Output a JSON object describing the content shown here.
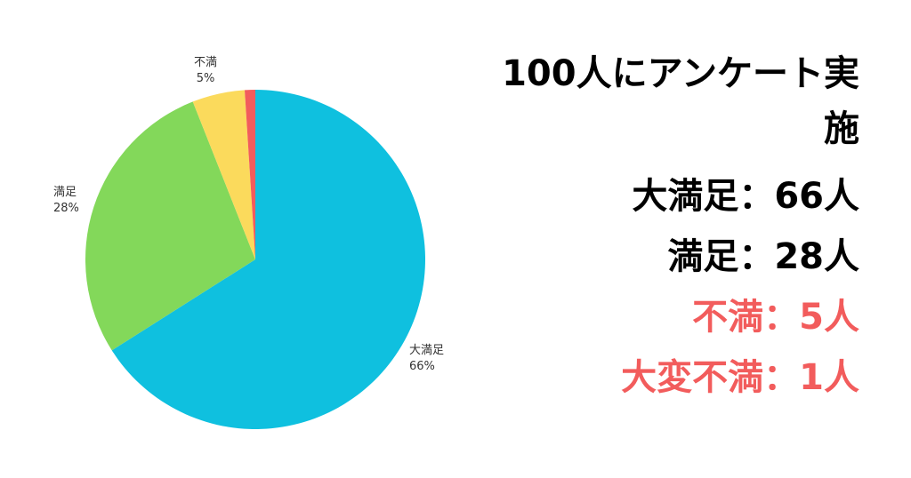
{
  "colors": {
    "daimanzoku": "#0FC0DF",
    "manzoku": "#83D85A",
    "fuman": "#FBDA5C",
    "taihen_fuman": "#F25C5C",
    "text_dark": "#000000",
    "text_red": "#F25C5C"
  },
  "chart_data": {
    "type": "pie",
    "title": "",
    "slices": [
      {
        "name": "大満足",
        "value": 66,
        "label": "66%",
        "color": "#0FC0DF"
      },
      {
        "name": "満足",
        "value": 28,
        "label": "28%",
        "color": "#83D85A"
      },
      {
        "name": "不満",
        "value": 5,
        "label": "5%",
        "color": "#FBDA5C"
      },
      {
        "name": "",
        "value": 1,
        "label": "",
        "color": "#F25C5C"
      }
    ],
    "start_angle_deg": 0,
    "direction": "clockwise"
  },
  "labels": {
    "daimanzoku": {
      "name": "大満足",
      "pct": "66%"
    },
    "manzoku": {
      "name": "満足",
      "pct": "28%"
    },
    "fuman": {
      "name": "不満",
      "pct": "5%"
    }
  },
  "summary": {
    "title": "100人にアンケート実施",
    "lines": [
      {
        "text": "大満足：66人",
        "color": "#000000"
      },
      {
        "text": "満足：28人",
        "color": "#000000"
      },
      {
        "text": "不満：5人",
        "color": "#F25C5C"
      },
      {
        "text": "大変不満：1人",
        "color": "#F25C5C"
      }
    ]
  }
}
